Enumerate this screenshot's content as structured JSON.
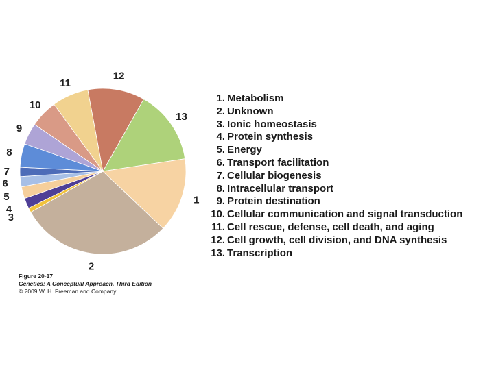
{
  "chart_data": {
    "type": "pie",
    "title": "",
    "slices": [
      {
        "id": "1",
        "label": "Metabolism",
        "value": 14.5,
        "color": "#f7d3a3"
      },
      {
        "id": "2",
        "label": "Unknown",
        "value": 29.7,
        "color": "#c4b09c"
      },
      {
        "id": "3",
        "label": "Ionic homeostasis",
        "value": 0.9,
        "color": "#f1c23b"
      },
      {
        "id": "4",
        "label": "Protein synthesis",
        "value": 2.0,
        "color": "#4f3f96"
      },
      {
        "id": "5",
        "label": "Energy",
        "value": 2.3,
        "color": "#f6cf9b"
      },
      {
        "id": "6",
        "label": "Transport facilitation",
        "value": 2.0,
        "color": "#a7bfe6"
      },
      {
        "id": "7",
        "label": "Cellular biogenesis",
        "value": 1.8,
        "color": "#4d6cb8"
      },
      {
        "id": "8",
        "label": "Intracellular transport",
        "value": 4.6,
        "color": "#5d8cd8"
      },
      {
        "id": "9",
        "label": "Protein destination",
        "value": 4.2,
        "color": "#aea4d6"
      },
      {
        "id": "10",
        "label": "Cellular communication and signal transduction",
        "value": 5.4,
        "color": "#d99a86"
      },
      {
        "id": "11",
        "label": "Cell rescue, defense, cell death, and aging",
        "value": 7.1,
        "color": "#f1d28f"
      },
      {
        "id": "12",
        "label": "Cell growth, cell division, and DNA synthesis",
        "value": 11.1,
        "color": "#c87a62"
      },
      {
        "id": "13",
        "label": "Transcription",
        "value": 14.4,
        "color": "#aed27a"
      }
    ]
  },
  "legend": [
    {
      "num": "1.",
      "text": "Metabolism"
    },
    {
      "num": "2.",
      "text": "Unknown"
    },
    {
      "num": "3.",
      "text": "Ionic homeostasis"
    },
    {
      "num": "4.",
      "text": "Protein synthesis"
    },
    {
      "num": "5.",
      "text": "Energy"
    },
    {
      "num": "6.",
      "text": "Transport facilitation"
    },
    {
      "num": "7.",
      "text": "Cellular biogenesis"
    },
    {
      "num": "8.",
      "text": "Intracellular transport"
    },
    {
      "num": "9.",
      "text": "Protein destination"
    },
    {
      "num": "10.",
      "text": "Cellular communication and signal transduction"
    },
    {
      "num": "11.",
      "text": "Cell rescue, defense, cell death, and aging"
    },
    {
      "num": "12.",
      "text": "Cell growth, cell division, and DNA synthesis"
    },
    {
      "num": "13.",
      "text": "Transcription"
    }
  ],
  "caption": {
    "figure": "Figure 20-17",
    "book": "Genetics: A Conceptual Approach, Third Edition",
    "copyright": "© 2009 W. H. Freeman and Company"
  }
}
